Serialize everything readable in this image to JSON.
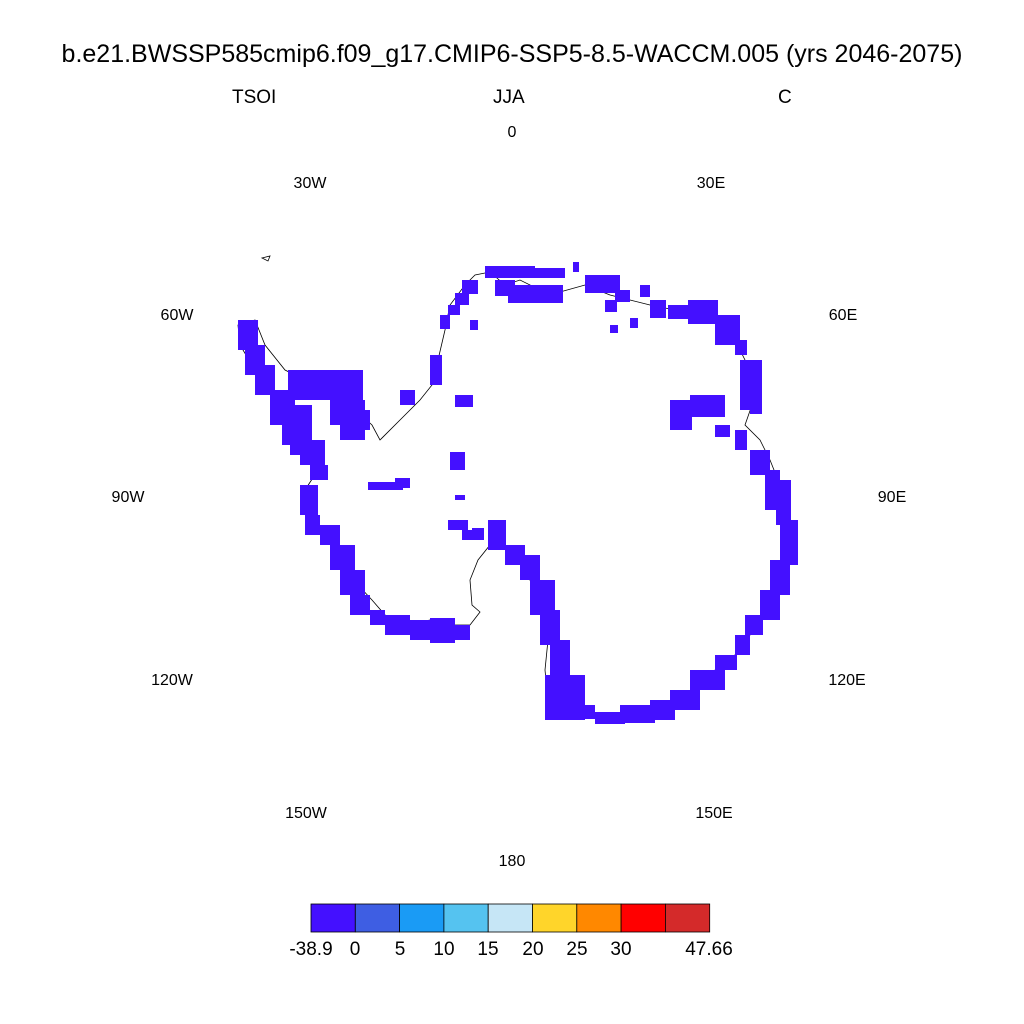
{
  "header": {
    "title": "b.e21.BWSSP585cmip6.f09_g17.CMIP6-SSP5-8.5-WACCM.005 (yrs 2046-2075)",
    "left": "TSOI",
    "center": "JJA",
    "right": "C"
  },
  "map": {
    "projection": "south-polar-stereographic",
    "longitude_labels": [
      "0",
      "30E",
      "60E",
      "90E",
      "120E",
      "150E",
      "180",
      "150W",
      "120W",
      "90W",
      "60W",
      "30W"
    ],
    "fill_color": "#4410ff",
    "coast_color": "#000000"
  },
  "colorbar": {
    "colors": [
      "#4410ff",
      "#3e5ee3",
      "#1a9bf5",
      "#55c3f0",
      "#c6e6f6",
      "#ffd52a",
      "#ff8800",
      "#ff0000",
      "#d42a2a"
    ],
    "labels": [
      "-38.9",
      "0",
      "5",
      "10",
      "15",
      "20",
      "25",
      "30",
      "47.66"
    ]
  }
}
